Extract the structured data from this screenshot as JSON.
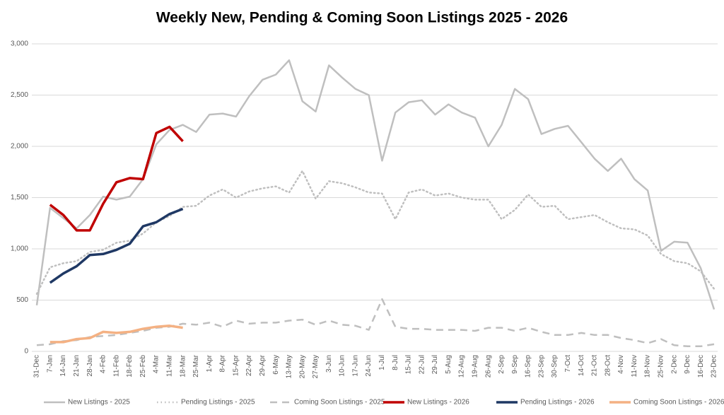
{
  "chart_data": {
    "type": "line",
    "title": "Weekly New, Pending & Coming Soon Listings 2025 - 2026",
    "categories": [
      "31-Dec",
      "7-Jan",
      "14-Jan",
      "21-Jan",
      "28-Jan",
      "4-Feb",
      "11-Feb",
      "18-Feb",
      "25-Feb",
      "4-Mar",
      "11-Mar",
      "18-Mar",
      "25-Mar",
      "1-Apr",
      "8-Apr",
      "15-Apr",
      "22-Apr",
      "29-Apr",
      "6-May",
      "13-May",
      "20-May",
      "27-May",
      "3-Jun",
      "10-Jun",
      "17-Jun",
      "24-Jun",
      "1-Jul",
      "8-Jul",
      "15-Jul",
      "22-Jul",
      "29-Jul",
      "5-Aug",
      "12-Aug",
      "19-Aug",
      "26-Aug",
      "2-Sep",
      "9-Sep",
      "16-Sep",
      "23-Sep",
      "30-Sep",
      "7-Oct",
      "14-Oct",
      "21-Oct",
      "28-Oct",
      "4-Nov",
      "11-Nov",
      "18-Nov",
      "25-Nov",
      "2-Dec",
      "9-Dec",
      "16-Dec",
      "23-Dec"
    ],
    "ylim": [
      0,
      3000
    ],
    "yticks": [
      0,
      500,
      {
        "value": 1000,
        "label": "1,000"
      },
      {
        "value": 1500,
        "label": "1,500"
      },
      {
        "value": 2000,
        "label": "2,000"
      },
      {
        "value": 2500,
        "label": "2,500"
      },
      {
        "value": 3000,
        "label": "3,000"
      }
    ],
    "grid": true,
    "legend": "bottom",
    "series": [
      {
        "name": "New Listings - 2025",
        "color": "#bfbfbf",
        "dash": "solid",
        "line_width": 2.5,
        "values": [
          450,
          1400,
          1300,
          1200,
          1330,
          1510,
          1480,
          1510,
          1680,
          2020,
          2160,
          2210,
          2140,
          2310,
          2320,
          2290,
          2490,
          2650,
          2700,
          2840,
          2440,
          2340,
          2790,
          2670,
          2560,
          2500,
          1860,
          2330,
          2430,
          2450,
          2310,
          2410,
          2330,
          2280,
          2000,
          2210,
          2560,
          2460,
          2120,
          2170,
          2200,
          2040,
          1880,
          1760,
          1880,
          1680,
          1570,
          980,
          1070,
          1060,
          810,
          410
        ]
      },
      {
        "name": "Pending Listings - 2025",
        "color": "#bfbfbf",
        "dash": "dotted",
        "line_width": 2.5,
        "values": [
          560,
          820,
          860,
          880,
          970,
          990,
          1060,
          1080,
          1150,
          1260,
          1320,
          1410,
          1420,
          1520,
          1580,
          1500,
          1560,
          1590,
          1610,
          1550,
          1760,
          1490,
          1660,
          1640,
          1600,
          1550,
          1540,
          1290,
          1550,
          1580,
          1520,
          1540,
          1500,
          1480,
          1480,
          1290,
          1380,
          1530,
          1410,
          1420,
          1290,
          1310,
          1330,
          1260,
          1200,
          1190,
          1130,
          950,
          880,
          860,
          780,
          610
        ]
      },
      {
        "name": "Coming Soon Listings - 2025",
        "color": "#bfbfbf",
        "dash": "dashed",
        "line_width": 2.5,
        "values": [
          60,
          70,
          100,
          110,
          140,
          150,
          160,
          180,
          200,
          230,
          240,
          270,
          260,
          280,
          240,
          300,
          270,
          280,
          280,
          300,
          310,
          260,
          300,
          260,
          250,
          210,
          510,
          240,
          220,
          220,
          210,
          210,
          210,
          200,
          230,
          230,
          200,
          230,
          190,
          160,
          160,
          180,
          160,
          160,
          130,
          110,
          80,
          120,
          60,
          50,
          50,
          70
        ]
      },
      {
        "name": "New Listings - 2026",
        "color": "#c00000",
        "dash": "solid",
        "line_width": 3.5,
        "values": [
          null,
          1430,
          1330,
          1180,
          1180,
          1440,
          1650,
          1690,
          1680,
          2130,
          2190,
          2050,
          null,
          null,
          null,
          null,
          null,
          null,
          null,
          null,
          null,
          null,
          null,
          null,
          null,
          null,
          null,
          null,
          null,
          null,
          null,
          null,
          null,
          null,
          null,
          null,
          null,
          null,
          null,
          null,
          null,
          null,
          null,
          null,
          null,
          null,
          null,
          null,
          null,
          null,
          null,
          null
        ]
      },
      {
        "name": "Pending Listings - 2026",
        "color": "#1f3864",
        "dash": "solid",
        "line_width": 3.5,
        "values": [
          null,
          670,
          760,
          830,
          940,
          950,
          990,
          1050,
          1220,
          1260,
          1340,
          1390,
          null,
          null,
          null,
          null,
          null,
          null,
          null,
          null,
          null,
          null,
          null,
          null,
          null,
          null,
          null,
          null,
          null,
          null,
          null,
          null,
          null,
          null,
          null,
          null,
          null,
          null,
          null,
          null,
          null,
          null,
          null,
          null,
          null,
          null,
          null,
          null,
          null,
          null,
          null,
          null
        ]
      },
      {
        "name": "Coming Soon Listings - 2026",
        "color": "#f4b183",
        "dash": "solid",
        "line_width": 3.5,
        "values": [
          null,
          90,
          90,
          120,
          130,
          190,
          180,
          190,
          220,
          240,
          250,
          230,
          null,
          null,
          null,
          null,
          null,
          null,
          null,
          null,
          null,
          null,
          null,
          null,
          null,
          null,
          null,
          null,
          null,
          null,
          null,
          null,
          null,
          null,
          null,
          null,
          null,
          null,
          null,
          null,
          null,
          null,
          null,
          null,
          null,
          null,
          null,
          null,
          null,
          null,
          null,
          null
        ]
      }
    ]
  }
}
